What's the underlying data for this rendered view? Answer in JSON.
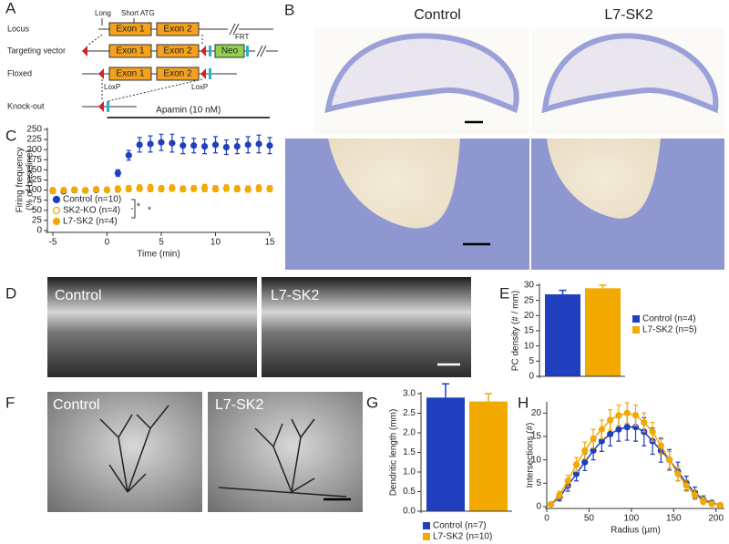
{
  "panels": [
    "A",
    "B",
    "C",
    "D",
    "E",
    "F",
    "G",
    "H"
  ],
  "gene_diagram": {
    "rows": [
      "Locus",
      "Targeting vector",
      "Floxed",
      "Knock-out"
    ],
    "long": "Long",
    "short_atg": "Short ATG",
    "exon1": [
      "Exon 1",
      "Exon 1",
      "Exon 1"
    ],
    "exon2": [
      "Exon 2",
      "Exon 2",
      "Exon 2"
    ],
    "neo": "Neo",
    "frt": "FRT",
    "loxp": [
      "LoxP",
      "LoxP"
    ]
  },
  "micrographs": {
    "histology": [
      "Control",
      "L7-SK2"
    ],
    "calbindin": [
      "Control",
      "L7-SK2"
    ],
    "filled_cells": [
      "Control",
      "L7-SK2"
    ]
  },
  "chart_data": [
    {
      "type": "line",
      "xlabel": "Time (min)",
      "ylabel": [
        "Firing frequency",
        "(% of baseline)"
      ],
      "xlim": [
        -5.5,
        15
      ],
      "xticks": [
        -5,
        0,
        5,
        10,
        15
      ],
      "ylim": [
        0,
        250
      ],
      "yticks": [
        0,
        25,
        50,
        75,
        100,
        125,
        150,
        175,
        200,
        225,
        250
      ],
      "annotation": {
        "text": "Apamin (10 nM)",
        "start": 0,
        "end": 15
      },
      "significance": [
        "*",
        "*"
      ],
      "legend": "lower left",
      "lines": false,
      "x": [
        -5,
        -4,
        -3,
        -2,
        -1,
        0,
        1,
        2,
        3,
        4,
        5,
        6,
        7,
        8,
        9,
        10,
        11,
        12,
        13,
        14,
        15
      ],
      "series": [
        {
          "name": "Control (n=10)",
          "color": "#1f3fbf",
          "marker": "filled",
          "values": [
            98,
            97,
            100,
            99,
            100,
            100,
            142,
            186,
            212,
            214,
            218,
            216,
            210,
            210,
            208,
            212,
            206,
            208,
            212,
            214,
            210
          ],
          "errors": [
            6,
            5,
            6,
            5,
            5,
            5,
            8,
            12,
            18,
            20,
            20,
            22,
            20,
            18,
            18,
            20,
            18,
            18,
            20,
            22,
            20
          ]
        },
        {
          "name": "SK2-KO (n=4)",
          "color": "#f2a900",
          "marker": "open",
          "values": [
            100,
            99,
            101,
            100,
            102,
            101,
            103,
            104,
            105,
            106,
            104,
            105,
            103,
            104,
            106,
            104,
            105,
            104,
            103,
            105,
            104
          ],
          "errors": [
            5,
            5,
            6,
            5,
            6,
            6,
            7,
            7,
            8,
            8,
            7,
            8,
            7,
            7,
            8,
            7,
            8,
            7,
            7,
            8,
            7
          ]
        },
        {
          "name": "L7-SK2 (n=4)",
          "color": "#f2a900",
          "marker": "filled",
          "values": [
            98,
            100,
            100,
            99,
            101,
            100,
            101,
            102,
            103,
            103,
            102,
            104,
            102,
            103,
            103,
            102,
            104,
            102,
            101,
            103,
            102
          ],
          "errors": [
            5,
            5,
            5,
            5,
            5,
            5,
            6,
            6,
            6,
            7,
            6,
            7,
            6,
            6,
            7,
            6,
            7,
            6,
            6,
            7,
            6
          ]
        }
      ]
    },
    {
      "type": "bar",
      "ylabel": "PC density (# / mm)",
      "ylim": [
        0,
        30
      ],
      "yticks": [
        0,
        5,
        10,
        15,
        20,
        25,
        30
      ],
      "legend": "right",
      "series": [
        {
          "name": "Control (n=4)",
          "color": "#1f3fbf",
          "values": [
            27
          ],
          "errors": [
            1.3
          ]
        },
        {
          "name": "L7-SK2 (n=5)",
          "color": "#f2a900",
          "values": [
            29
          ],
          "errors": [
            1
          ]
        }
      ]
    },
    {
      "type": "bar",
      "ylabel": "Dendritic length (mm)",
      "ylim": [
        0,
        3
      ],
      "yticks": [
        {
          "value": 0,
          "label": "0.0"
        },
        {
          "value": 0.5,
          "label": "0.5"
        },
        {
          "value": 1,
          "label": "1.0"
        },
        {
          "value": 1.5,
          "label": "1.5"
        },
        {
          "value": 2,
          "label": "2.0"
        },
        {
          "value": 2.5,
          "label": "2.5"
        },
        {
          "value": 3,
          "label": "3.0"
        }
      ],
      "legend": "bottom",
      "series": [
        {
          "name": "Control (n=7)",
          "color": "#1f3fbf",
          "values": [
            2.9
          ],
          "errors": [
            0.35
          ]
        },
        {
          "name": "L7-SK2 (n=10)",
          "color": "#f2a900",
          "values": [
            2.8
          ],
          "errors": [
            0.2
          ]
        }
      ]
    },
    {
      "type": "line",
      "xlabel": "Radius (µm)",
      "ylabel": "Intersections (#)",
      "xlim": [
        0,
        210
      ],
      "xticks": [
        0,
        50,
        100,
        150,
        200
      ],
      "ylim": [
        0,
        22
      ],
      "yticks": [
        0,
        5,
        10,
        15,
        20
      ],
      "lines": true,
      "x": [
        5,
        15,
        25,
        35,
        45,
        55,
        65,
        75,
        85,
        95,
        105,
        115,
        125,
        135,
        145,
        155,
        165,
        175,
        185,
        195,
        205
      ],
      "series": [
        {
          "name": "Control",
          "color": "#1f3fbf",
          "marker": "filled",
          "values": [
            0.5,
            2,
            4.5,
            7,
            9.5,
            12,
            14,
            15.5,
            16.5,
            17,
            17,
            16,
            14,
            12,
            10,
            7.5,
            5,
            3,
            1.5,
            0.8,
            0.3
          ],
          "errors": [
            0.3,
            0.8,
            1.2,
            1.5,
            1.8,
            2,
            2.2,
            2.5,
            2.5,
            2.8,
            3,
            3,
            2.8,
            2.5,
            2.2,
            2,
            1.5,
            1.2,
            0.8,
            0.5,
            0.3
          ]
        },
        {
          "name": "L7-SK2",
          "color": "#f2a900",
          "marker": "filled",
          "values": [
            0.5,
            2.5,
            5.5,
            9,
            12,
            14.5,
            16.5,
            18.5,
            19.5,
            20,
            19.5,
            18,
            16,
            13,
            10,
            7,
            4.5,
            2.5,
            1.2,
            0.6,
            0.3
          ],
          "errors": [
            0.3,
            0.8,
            1.2,
            1.5,
            1.8,
            2,
            2,
            2.2,
            2.2,
            2.2,
            2.2,
            2,
            2,
            1.8,
            1.8,
            1.5,
            1.2,
            1,
            0.8,
            0.5,
            0.3
          ]
        }
      ]
    }
  ]
}
